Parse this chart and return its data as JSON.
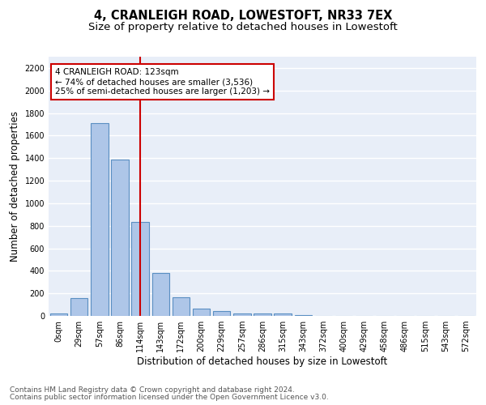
{
  "title": "4, CRANLEIGH ROAD, LOWESTOFT, NR33 7EX",
  "subtitle": "Size of property relative to detached houses in Lowestoft",
  "xlabel": "Distribution of detached houses by size in Lowestoft",
  "ylabel": "Number of detached properties",
  "footnote1": "Contains HM Land Registry data © Crown copyright and database right 2024.",
  "footnote2": "Contains public sector information licensed under the Open Government Licence v3.0.",
  "bar_labels": [
    "0sqm",
    "29sqm",
    "57sqm",
    "86sqm",
    "114sqm",
    "143sqm",
    "172sqm",
    "200sqm",
    "229sqm",
    "257sqm",
    "286sqm",
    "315sqm",
    "343sqm",
    "372sqm",
    "400sqm",
    "429sqm",
    "458sqm",
    "486sqm",
    "515sqm",
    "543sqm",
    "572sqm"
  ],
  "bar_values": [
    20,
    155,
    1710,
    1390,
    835,
    380,
    165,
    65,
    40,
    25,
    25,
    25,
    10,
    0,
    0,
    0,
    0,
    0,
    0,
    0,
    0
  ],
  "bar_color": "#aec6e8",
  "bar_edge_color": "#5a8fc2",
  "bar_edge_width": 0.8,
  "vline_x": 4,
  "vline_color": "#cc0000",
  "annotation_lines": [
    "4 CRANLEIGH ROAD: 123sqm",
    "← 74% of detached houses are smaller (3,536)",
    "25% of semi-detached houses are larger (1,203) →"
  ],
  "annotation_box_color": "#cc0000",
  "ylim": [
    0,
    2300
  ],
  "yticks": [
    0,
    200,
    400,
    600,
    800,
    1000,
    1200,
    1400,
    1600,
    1800,
    2000,
    2200
  ],
  "bg_color": "#e8eef8",
  "grid_color": "#ffffff",
  "title_fontsize": 10.5,
  "subtitle_fontsize": 9.5,
  "axis_label_fontsize": 8.5,
  "tick_fontsize": 7,
  "annotation_fontsize": 7.5,
  "footnote_fontsize": 6.5
}
